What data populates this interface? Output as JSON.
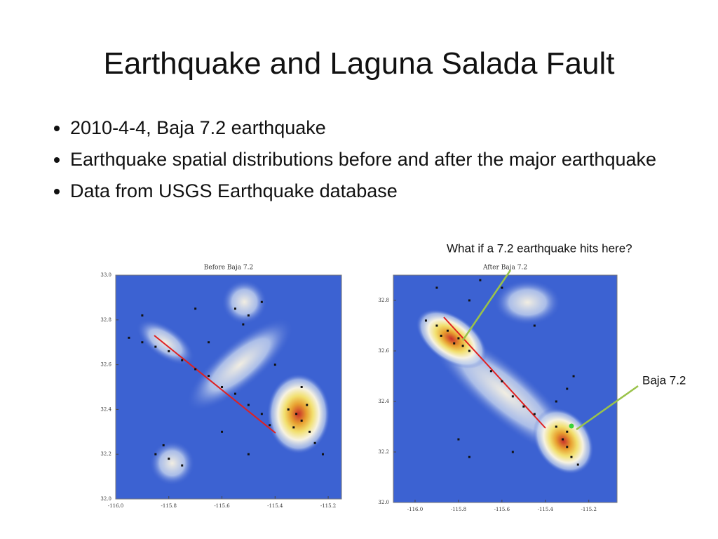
{
  "title": "Earthquake and Laguna Salada Fault",
  "bullets": [
    "2010-4-4, Baja 7.2 earthquake",
    "Earthquake spatial distributions before and after the major earthquake",
    "Data from USGS Earthquake database"
  ],
  "annotations": [
    "What if a 7.2 earthquake hits here?",
    "Baja 7.2"
  ],
  "chart_data": [
    {
      "type": "scatter",
      "title": "Before Baja 7.2",
      "xlim": [
        -116.0,
        -115.15
      ],
      "ylim": [
        32.0,
        33.0
      ],
      "xticks": [
        {
          "value": -116.0,
          "label": "-116.0"
        },
        -115.8,
        -115.6,
        -115.4,
        -115.2
      ],
      "yticks": [
        {
          "value": 32.0,
          "label": "32.0"
        },
        32.2,
        32.4,
        32.6,
        32.8,
        {
          "value": 33.0,
          "label": "33.0"
        }
      ],
      "x": [
        -115.95,
        -115.9,
        -115.85,
        -115.8,
        -115.75,
        -115.7,
        -115.65,
        -115.6,
        -115.55,
        -115.5,
        -115.45,
        -115.42,
        -115.35,
        -115.32,
        -115.3,
        -115.28,
        -115.33,
        -115.25,
        -115.22,
        -115.3,
        -115.27,
        -115.55,
        -115.5,
        -115.45,
        -115.52,
        -115.85,
        -115.8,
        -115.82,
        -115.75,
        -115.9,
        -115.7,
        -115.6,
        -115.65,
        -115.4,
        -115.5
      ],
      "values": [
        32.72,
        32.7,
        32.68,
        32.66,
        32.62,
        32.58,
        32.55,
        32.5,
        32.47,
        32.42,
        32.38,
        32.33,
        32.4,
        32.38,
        32.35,
        32.42,
        32.32,
        32.25,
        32.2,
        32.5,
        32.3,
        32.85,
        32.82,
        32.88,
        32.78,
        32.2,
        32.18,
        32.24,
        32.15,
        32.82,
        32.85,
        32.3,
        32.7,
        32.6,
        32.2
      ]
    },
    {
      "type": "scatter",
      "title": "After Baja 7.2",
      "xlim": [
        -116.1,
        -115.07
      ],
      "ylim": [
        32.0,
        32.9
      ],
      "xticks": [
        {
          "value": -116.0,
          "label": "-116.0"
        },
        -115.8,
        -115.6,
        -115.4,
        -115.2
      ],
      "yticks": [
        {
          "value": 32.0,
          "label": "32.0"
        },
        32.2,
        32.4,
        32.6,
        32.8
      ],
      "x": [
        -115.95,
        -115.9,
        -115.85,
        -115.8,
        -115.78,
        -115.75,
        -115.82,
        -115.88,
        -115.65,
        -115.6,
        -115.55,
        -115.5,
        -115.45,
        -115.35,
        -115.32,
        -115.3,
        -115.28,
        -115.25,
        -115.3,
        -115.35,
        -115.3,
        -115.27,
        -115.9,
        -115.75,
        -115.7,
        -115.6,
        -115.8,
        -115.75,
        -115.55,
        -115.45
      ],
      "values": [
        32.72,
        32.7,
        32.68,
        32.65,
        32.62,
        32.6,
        32.63,
        32.66,
        32.52,
        32.48,
        32.42,
        32.38,
        32.35,
        32.3,
        32.25,
        32.22,
        32.18,
        32.15,
        32.28,
        32.4,
        32.45,
        32.5,
        32.85,
        32.8,
        32.88,
        32.85,
        32.25,
        32.18,
        32.2,
        32.7
      ]
    }
  ]
}
